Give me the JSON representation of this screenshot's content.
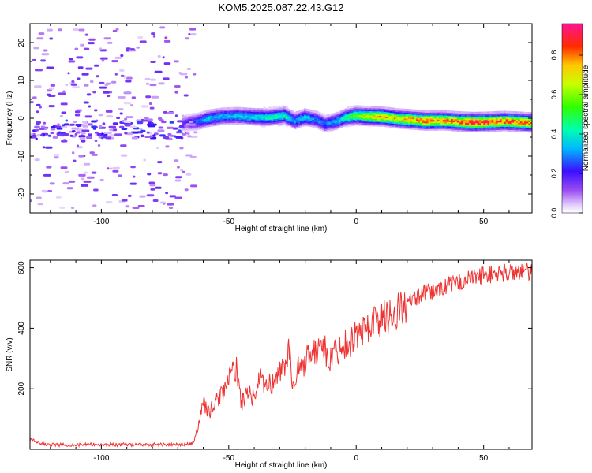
{
  "figure": {
    "title": "KOM5.2025.087.22.43.G12"
  },
  "chart_data": [
    {
      "type": "heatmap",
      "title": "KOM5.2025.087.22.43.G12",
      "xlabel": "Height of straight line (km)",
      "ylabel": "Frequency (Hz)",
      "xlim": [
        -128,
        69
      ],
      "ylim": [
        -25,
        25
      ],
      "xticks": [
        -100,
        -50,
        0,
        50
      ],
      "yticks": [
        -20,
        -10,
        0,
        10,
        20
      ],
      "xtick_labels": [
        "-100",
        "-50",
        "0",
        "50"
      ],
      "ytick_labels": [
        "-20",
        "-10",
        "0",
        "10",
        "20"
      ],
      "grid": false,
      "colorbar": {
        "label": "Normalized spectral amplitude",
        "range": [
          0,
          0.96
        ],
        "ticks": [
          0.0,
          0.2,
          0.4,
          0.6,
          0.8
        ],
        "tick_labels": [
          "0.0",
          "0.2",
          "0.4",
          "0.6",
          "0.8"
        ],
        "colormap": [
          "#ffffff",
          "#d7b8ff",
          "#8a2be2",
          "#2020ff",
          "#00e0ff",
          "#00ff60",
          "#c8ff00",
          "#ffd000",
          "#ff3000",
          "#ff1493"
        ]
      },
      "ridge": [
        {
          "x": -68,
          "f": -1.3,
          "amp": 0.16
        },
        {
          "x": -62,
          "f": -0.8,
          "amp": 0.28
        },
        {
          "x": -58,
          "f": 0.0,
          "amp": 0.36
        },
        {
          "x": -52,
          "f": 0.6,
          "amp": 0.33
        },
        {
          "x": -46,
          "f": 0.7,
          "amp": 0.36
        },
        {
          "x": -40,
          "f": 0.4,
          "amp": 0.38
        },
        {
          "x": -34,
          "f": 0.3,
          "amp": 0.42
        },
        {
          "x": -28,
          "f": 0.8,
          "amp": 0.44
        },
        {
          "x": -24,
          "f": -0.6,
          "amp": 0.33
        },
        {
          "x": -20,
          "f": 0.3,
          "amp": 0.38
        },
        {
          "x": -16,
          "f": -0.2,
          "amp": 0.3
        },
        {
          "x": -12,
          "f": -1.4,
          "amp": 0.28
        },
        {
          "x": -8,
          "f": -0.8,
          "amp": 0.34
        },
        {
          "x": -4,
          "f": 0.3,
          "amp": 0.45
        },
        {
          "x": 0,
          "f": 0.8,
          "amp": 0.58
        },
        {
          "x": 5,
          "f": 0.6,
          "amp": 0.7
        },
        {
          "x": 10,
          "f": 0.5,
          "amp": 0.78
        },
        {
          "x": 16,
          "f": 0.0,
          "amp": 0.74
        },
        {
          "x": 22,
          "f": -0.3,
          "amp": 0.78
        },
        {
          "x": 28,
          "f": -0.6,
          "amp": 0.86
        },
        {
          "x": 34,
          "f": -0.5,
          "amp": 0.8
        },
        {
          "x": 40,
          "f": -0.8,
          "amp": 0.84
        },
        {
          "x": 46,
          "f": -1.0,
          "amp": 0.93
        },
        {
          "x": 52,
          "f": -0.9,
          "amp": 0.9
        },
        {
          "x": 58,
          "f": -0.7,
          "amp": 0.86
        },
        {
          "x": 64,
          "f": -0.9,
          "amp": 0.84
        },
        {
          "x": 69,
          "f": -1.1,
          "amp": 0.82
        }
      ],
      "noise_region": {
        "x_range": [
          -128,
          -63
        ],
        "f_range": [
          -24,
          24
        ],
        "amp_range": [
          0.03,
          0.2
        ],
        "note": "scattered low-amplitude patches, denser band near -3 Hz"
      }
    },
    {
      "type": "line",
      "title": "",
      "xlabel": "Height of straight line (km)",
      "ylabel": "SNR (v/v)",
      "xlim": [
        -128,
        69
      ],
      "ylim": [
        0,
        625
      ],
      "xticks": [
        -100,
        -50,
        0,
        50
      ],
      "yticks": [
        200,
        400,
        600
      ],
      "xtick_labels": [
        "-100",
        "-50",
        "0",
        "50"
      ],
      "ytick_labels": [
        "200",
        "400",
        "600"
      ],
      "grid": false,
      "series": [
        {
          "name": "SNR",
          "color": "#ee3333",
          "x": [
            -128,
            -125,
            -120,
            -110,
            -100,
            -90,
            -80,
            -70,
            -64,
            -62,
            -60,
            -58,
            -55,
            -52,
            -49,
            -47,
            -45,
            -42,
            -40,
            -38,
            -36,
            -34,
            -32,
            -30,
            -28,
            -26,
            -25,
            -23,
            -21,
            -19,
            -17,
            -15,
            -14,
            -13,
            -11,
            -9,
            -7,
            -5,
            -3,
            0,
            3,
            6,
            10,
            15,
            20,
            25,
            30,
            35,
            40,
            45,
            50,
            55,
            60,
            65,
            69
          ],
          "values": [
            35,
            22,
            15,
            15,
            16,
            15,
            16,
            15,
            18,
            75,
            160,
            120,
            155,
            200,
            245,
            270,
            150,
            200,
            160,
            240,
            200,
            220,
            215,
            260,
            280,
            340,
            180,
            290,
            260,
            330,
            320,
            300,
            400,
            360,
            280,
            320,
            330,
            350,
            350,
            380,
            390,
            420,
            430,
            450,
            480,
            510,
            520,
            540,
            550,
            565,
            575,
            580,
            585,
            590,
            580
          ]
        }
      ]
    }
  ]
}
